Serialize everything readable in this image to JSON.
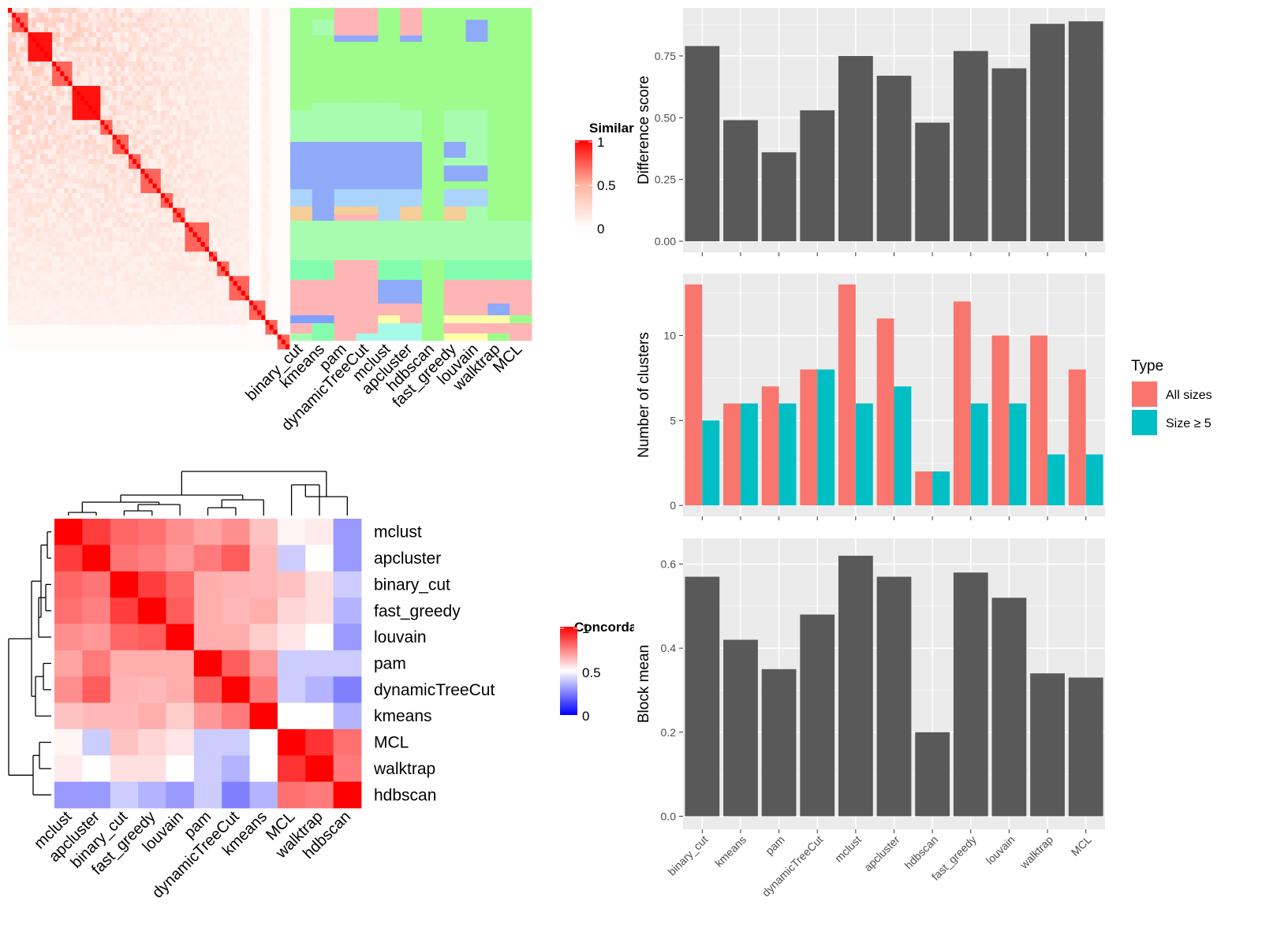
{
  "chart_data": [
    {
      "type": "heatmap",
      "legend_title": "Similarity",
      "legend_ticks": [
        "0",
        "0.5",
        "1"
      ],
      "column_labels": [
        "binary_cut",
        "kmeans",
        "pam",
        "dynamicTreeCut",
        "mclust",
        "apcluster",
        "hdbscan",
        "fast_greedy",
        "louvain",
        "walktrap",
        "MCL"
      ],
      "color_scale": {
        "low": "#ffffff",
        "mid": "#ffb4a0",
        "high": "#ff0000"
      }
    },
    {
      "type": "heatmap",
      "legend_title": "Concordance",
      "legend_ticks": [
        "0",
        "0.5",
        "1"
      ],
      "row_labels": [
        "mclust",
        "apcluster",
        "binary_cut",
        "fast_greedy",
        "louvain",
        "pam",
        "dynamicTreeCut",
        "kmeans",
        "MCL",
        "walktrap",
        "hdbscan"
      ],
      "column_labels": [
        "mclust",
        "apcluster",
        "binary_cut",
        "fast_greedy",
        "louvain",
        "pam",
        "dynamicTreeCut",
        "kmeans",
        "MCL",
        "walktrap",
        "hdbscan"
      ],
      "values": [
        [
          1.0,
          0.88,
          0.8,
          0.78,
          0.72,
          0.68,
          0.72,
          0.62,
          0.52,
          0.54,
          0.3
        ],
        [
          0.88,
          1.0,
          0.77,
          0.75,
          0.7,
          0.76,
          0.82,
          0.64,
          0.4,
          0.5,
          0.3
        ],
        [
          0.8,
          0.77,
          1.0,
          0.88,
          0.8,
          0.66,
          0.65,
          0.64,
          0.62,
          0.56,
          0.4
        ],
        [
          0.78,
          0.75,
          0.88,
          1.0,
          0.82,
          0.66,
          0.64,
          0.66,
          0.58,
          0.56,
          0.35
        ],
        [
          0.72,
          0.7,
          0.8,
          0.82,
          1.0,
          0.66,
          0.66,
          0.6,
          0.55,
          0.5,
          0.3
        ],
        [
          0.68,
          0.76,
          0.66,
          0.66,
          0.66,
          1.0,
          0.82,
          0.7,
          0.4,
          0.4,
          0.4
        ],
        [
          0.72,
          0.82,
          0.65,
          0.64,
          0.66,
          0.82,
          1.0,
          0.76,
          0.4,
          0.35,
          0.25
        ],
        [
          0.62,
          0.64,
          0.64,
          0.66,
          0.6,
          0.7,
          0.76,
          1.0,
          0.5,
          0.5,
          0.35
        ],
        [
          0.52,
          0.4,
          0.62,
          0.58,
          0.55,
          0.4,
          0.4,
          0.5,
          1.0,
          0.9,
          0.78
        ],
        [
          0.54,
          0.5,
          0.56,
          0.56,
          0.5,
          0.4,
          0.35,
          0.5,
          0.9,
          1.0,
          0.76
        ],
        [
          0.3,
          0.3,
          0.4,
          0.35,
          0.3,
          0.4,
          0.25,
          0.35,
          0.78,
          0.76,
          1.0
        ]
      ],
      "color_scale": {
        "low": "#0000ff",
        "mid": "#ffffff",
        "high": "#ff0000"
      }
    },
    {
      "type": "bar",
      "ylabel": "Difference score",
      "ylim": [
        0,
        0.9
      ],
      "yticks": [
        "0.00",
        "0.25",
        "0.50",
        "0.75"
      ],
      "categories": [
        "binary_cut",
        "kmeans",
        "pam",
        "dynamicTreeCut",
        "mclust",
        "apcluster",
        "hdbscan",
        "fast_greedy",
        "louvain",
        "walktrap",
        "MCL"
      ],
      "values": [
        0.79,
        0.49,
        0.36,
        0.53,
        0.75,
        0.67,
        0.48,
        0.77,
        0.7,
        0.88,
        0.89
      ],
      "color": "#595959"
    },
    {
      "type": "bar",
      "ylabel": "Number of clusters",
      "ylim": [
        0,
        13
      ],
      "yticks": [
        "0",
        "5",
        "10"
      ],
      "categories": [
        "binary_cut",
        "kmeans",
        "pam",
        "dynamicTreeCut",
        "mclust",
        "apcluster",
        "hdbscan",
        "fast_greedy",
        "louvain",
        "walktrap",
        "MCL"
      ],
      "legend_title": "Type",
      "series": [
        {
          "name": "All sizes",
          "color": "#f8766d",
          "values": [
            13,
            6,
            7,
            8,
            13,
            11,
            2,
            12,
            10,
            10,
            8
          ]
        },
        {
          "name": "Size ≥ 5",
          "color": "#00bfc4",
          "values": [
            5,
            6,
            6,
            8,
            6,
            7,
            2,
            6,
            6,
            3,
            3
          ]
        }
      ]
    },
    {
      "type": "bar",
      "ylabel": "Block mean",
      "ylim": [
        0,
        0.63
      ],
      "yticks": [
        "0.0",
        "0.2",
        "0.4",
        "0.6"
      ],
      "categories": [
        "binary_cut",
        "kmeans",
        "pam",
        "dynamicTreeCut",
        "mclust",
        "apcluster",
        "hdbscan",
        "fast_greedy",
        "louvain",
        "walktrap",
        "MCL"
      ],
      "values": [
        0.57,
        0.42,
        0.35,
        0.48,
        0.62,
        0.57,
        0.2,
        0.58,
        0.52,
        0.34,
        0.33
      ],
      "color": "#595959"
    }
  ]
}
